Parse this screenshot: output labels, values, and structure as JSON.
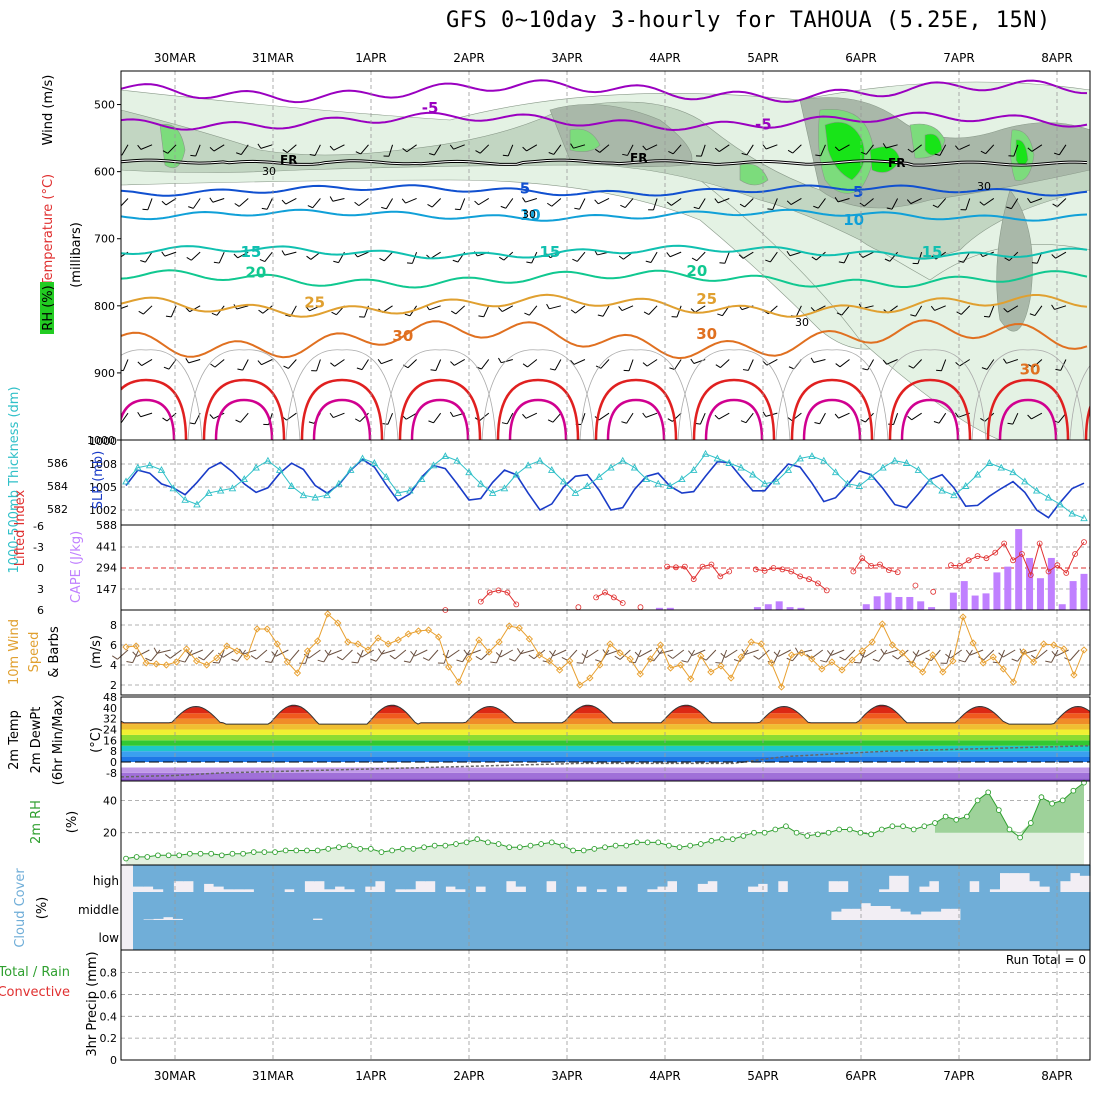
{
  "title": "GFS 0~10day 3-hourly for TAHOUA (5.25E, 15N)",
  "colors": {
    "rh_light": "#e4f2e4",
    "rh_mid": "#c2d6c2",
    "rh_gray": "#a9b8a9",
    "rh_green": "#7cdc7c",
    "rh_bright": "#18e418",
    "temp_purple": "#9a00c0",
    "temp_blue": "#1050d0",
    "temp_cyan": "#10a0d8",
    "temp_teal": "#10c0b0",
    "temp_green": "#10c890",
    "temp_orange": "#e0a030",
    "temp_dorange": "#e07020",
    "temp_red": "#e02020",
    "temp_magenta": "#d00090",
    "slp": "#1a3cc8",
    "thickness": "#30c0c8",
    "lifted": "#e03030",
    "cape": "#c080ff",
    "wind10": "#e8a030",
    "rh2m": "#30a030",
    "cloud": "#70aed8",
    "cloud_clear": "#f2eef4"
  },
  "chart_data": [
    {
      "type": "heatmap",
      "name_panel": "vertical-profile",
      "ylabel_rh": "RH (%)",
      "ylabel_temp": "Temperature (°C)",
      "ylabel_wind": "Wind (m/s)",
      "ylabel_units": "(millibars)",
      "x_dates_top": [
        "30MAR",
        "31MAR",
        "1APR",
        "2APR",
        "3APR",
        "4APR",
        "5APR",
        "6APR",
        "7APR",
        "8APR"
      ],
      "yticks": [
        500,
        600,
        700,
        800,
        900,
        1000
      ],
      "ylim": [
        450,
        1000
      ],
      "freezing_label": "FR",
      "freezing_level_mb": [
        585,
        587,
        586,
        587,
        585,
        586,
        587,
        586,
        588,
        588
      ],
      "isotherm_labels": [
        {
          "t": "-5",
          "p": 505,
          "day": 2.6
        },
        {
          "t": "-5",
          "p": 530,
          "day": 6.0
        },
        {
          "t": "5",
          "p": 625,
          "day": 3.6
        },
        {
          "t": "5",
          "p": 630,
          "day": 7.0
        },
        {
          "t": "10",
          "p": 665,
          "day": 3.6
        },
        {
          "t": "10",
          "p": 672,
          "day": 6.9
        },
        {
          "t": "15",
          "p": 720,
          "day": 0.75
        },
        {
          "t": "15",
          "p": 720,
          "day": 3.8
        },
        {
          "t": "15",
          "p": 720,
          "day": 7.7
        },
        {
          "t": "20",
          "p": 750,
          "day": 0.8
        },
        {
          "t": "20",
          "p": 748,
          "day": 5.3
        },
        {
          "t": "25",
          "p": 795,
          "day": 1.4
        },
        {
          "t": "25",
          "p": 790,
          "day": 5.4
        },
        {
          "t": "30",
          "p": 845,
          "day": 2.3
        },
        {
          "t": "30",
          "p": 842,
          "day": 5.4
        },
        {
          "t": "30",
          "p": 895,
          "day": 8.7
        }
      ],
      "small_labels": [
        "30",
        "30",
        "30",
        "30"
      ]
    },
    {
      "type": "line",
      "name_panel": "slp-thickness",
      "ylabel_left": "1000-500mb Thickness (dm)",
      "ylabel_right": "SLP (mb)",
      "yticks_left": [
        582,
        584,
        586
      ],
      "yticks_right": [
        1002,
        1005,
        1008
      ],
      "series": [
        {
          "name": "SLP",
          "values": [
            1005.2,
            1007.2,
            1006.8,
            1005.4,
            1004.9,
            1004.0,
            1005.6,
            1007.4,
            1008.2,
            1007.0,
            1005.4,
            1004.3,
            1004.9,
            1006.8,
            1008.1,
            1007.3,
            1005.2,
            1004.2,
            1005.3,
            1007.2,
            1008.6,
            1007.6,
            1005.3,
            1003.2,
            1004.1,
            1006.3,
            1007.8,
            1007.4,
            1005.4,
            1003.3,
            1003.5,
            1005.6,
            1007.2,
            1006.6,
            1004.2,
            1002.0,
            1002.8,
            1005.0,
            1006.4,
            1006.6,
            1004.6,
            1002.0,
            1002.3,
            1004.7,
            1006.4,
            1006.8,
            1005.1,
            1004.2,
            1004.4,
            1006.4,
            1008.3,
            1008.2,
            1006.3,
            1004.5,
            1004.5,
            1006.3,
            1008.0,
            1007.6,
            1005.5,
            1003.1,
            1003.6,
            1005.3,
            1007.1,
            1006.6,
            1004.8,
            1002.7,
            1002.3,
            1004.1,
            1006.0,
            1006.6,
            1004.9,
            1002.5,
            1002.6,
            1003.8,
            1004.8,
            1005.7,
            1004.3,
            1002.0,
            1001.0,
            1003.0,
            1004.8,
            1005.5
          ]
        },
        {
          "name": "Thickness",
          "values": [
            584.4,
            585.6,
            585.8,
            585.4,
            583.8,
            582.8,
            582.4,
            583.4,
            583.6,
            583.8,
            584.6,
            585.6,
            586.2,
            585.4,
            584.0,
            583.2,
            583.0,
            583.2,
            584.2,
            585.4,
            586.4,
            586.0,
            584.8,
            583.4,
            583.6,
            584.6,
            585.8,
            586.6,
            586.2,
            585.2,
            584.2,
            583.4,
            583.8,
            585.0,
            585.8,
            586.2,
            585.4,
            584.4,
            583.4,
            584.0,
            584.8,
            585.6,
            586.2,
            585.6,
            584.6,
            584.2,
            584.0,
            584.6,
            585.4,
            586.8,
            586.4,
            586.0,
            585.6,
            585.0,
            584.2,
            584.4,
            585.4,
            586.4,
            586.6,
            586.2,
            585.2,
            584.2,
            584.0,
            584.8,
            585.6,
            586.2,
            586.0,
            585.4,
            584.4,
            583.6,
            583.2,
            584.0,
            585.0,
            586.0,
            585.6,
            585.2,
            584.4,
            583.6,
            583.0,
            582.4,
            581.6,
            581.2
          ]
        }
      ]
    },
    {
      "type": "bar",
      "name_panel": "cape-li",
      "ylabel_left": "Lifted Index",
      "ylabel_right": "CAPE (J/kg)",
      "yticks_left": [
        -6,
        -3,
        0,
        3,
        6
      ],
      "yticks_right": [
        147,
        294,
        441,
        588
      ],
      "cape_values": [
        0,
        0,
        0,
        0,
        0,
        0,
        0,
        0,
        0,
        0,
        0,
        0,
        0,
        0,
        0,
        0,
        0,
        0,
        0,
        0,
        0,
        0,
        0,
        0,
        0,
        0,
        0,
        0,
        0,
        0,
        0,
        0,
        0,
        0,
        0,
        0,
        0,
        0,
        0,
        0,
        0,
        0,
        0,
        0,
        0,
        0,
        0,
        0,
        0,
        15,
        15,
        0,
        0,
        0,
        0,
        0,
        0,
        0,
        20,
        40,
        60,
        20,
        15,
        0,
        0,
        0,
        0,
        0,
        40,
        95,
        120,
        90,
        90,
        60,
        20,
        0,
        120,
        200,
        100,
        115,
        260,
        300,
        560,
        360,
        220,
        360,
        40,
        200,
        250
      ],
      "li_values": [
        null,
        null,
        null,
        null,
        null,
        null,
        null,
        null,
        null,
        null,
        null,
        null,
        null,
        null,
        null,
        null,
        null,
        null,
        null,
        null,
        null,
        null,
        null,
        null,
        null,
        null,
        null,
        null,
        null,
        null,
        null,
        null,
        null,
        null,
        null,
        null,
        6,
        null,
        null,
        null,
        4.8,
        3.5,
        3.2,
        3.5,
        5.2,
        null,
        null,
        null,
        null,
        null,
        null,
        5.6,
        null,
        4.2,
        3.5,
        4.2,
        5.0,
        null,
        5.6,
        null,
        null,
        -0.2,
        -0.1,
        -0.2,
        1.6,
        -0.2,
        -0.5,
        1.2,
        0.5,
        null,
        null,
        0.2,
        0.4,
        0.0,
        0.2,
        0.5,
        1.2,
        1.6,
        2.2,
        3.2,
        null,
        null,
        0.5,
        -1.4,
        -0.3,
        -0.5,
        0.3,
        0.6,
        null,
        2.5,
        null,
        3.4,
        null,
        -0.4,
        -0.3,
        -1.1,
        -1.7,
        -1.4,
        -2.2,
        -3.5,
        -1.1,
        -2.0,
        1.0,
        -3.5,
        0.5,
        -0.4,
        0.7,
        -2.0,
        -3.7
      ]
    },
    {
      "type": "line",
      "name_panel": "wind10m",
      "ylabel": "10m Wind Speed & Barbs (m/s)",
      "yticks": [
        2,
        4,
        6,
        8
      ],
      "ylim": [
        1,
        9.5
      ],
      "series": [
        {
          "name": "Speed",
          "values": [
            5.8,
            5.9,
            4.2,
            4.1,
            4.0,
            4.3,
            5.6,
            4.4,
            4.0,
            4.7,
            5.9,
            5.4,
            4.8,
            7.6,
            7.6,
            6.1,
            4.3,
            3.2,
            5.4,
            6.4,
            9.1,
            8.2,
            6.3,
            6.1,
            5.5,
            6.7,
            6.1,
            6.5,
            7.1,
            7.4,
            7.5,
            6.8,
            3.8,
            2.3,
            4.6,
            6.5,
            5.3,
            6.3,
            7.9,
            7.7,
            6.6,
            5.0,
            4.4,
            3.5,
            4.4,
            2.0,
            2.7,
            4.0,
            6.1,
            5.2,
            4.6,
            3.1,
            4.6,
            6.0,
            3.7,
            4.0,
            2.6,
            4.9,
            3.3,
            3.9,
            2.7,
            4.8,
            6.3,
            6.1,
            4.2,
            1.8,
            5.0,
            5.2,
            4.6,
            3.6,
            4.3,
            3.5,
            4.5,
            5.4,
            6.3,
            8.1,
            6.0,
            5.2,
            4.1,
            3.3,
            5.0,
            3.3,
            4.4,
            8.8,
            6.2,
            4.2,
            4.8,
            3.6,
            2.3,
            5.3,
            4.3,
            6.1,
            6.0,
            5.6,
            3.0,
            5.5
          ]
        }
      ]
    },
    {
      "type": "area",
      "name_panel": "temp2m",
      "ylabel": "2m Temp 2m DewPt (6hr Min/Max) (°C)",
      "yticks": [
        -8,
        0,
        8,
        16,
        24,
        32,
        40,
        48
      ],
      "ylim": [
        -14,
        48
      ],
      "band_colors": [
        "#8850c8",
        "#a070d8",
        "#c09ae8",
        "#ffffff",
        "#1e78e6",
        "#3aa0f0",
        "#1ec8c8",
        "#32c832",
        "#8cdc32",
        "#f0f032",
        "#f0be32",
        "#f08c28",
        "#f05a1e",
        "#dc2814",
        "#b41414",
        "#8c0a0a"
      ],
      "temp_max": [
        41,
        42,
        42,
        41,
        42,
        42,
        41,
        42,
        41,
        41
      ],
      "temp_min": [
        29,
        28,
        28,
        29,
        29,
        29,
        29,
        29,
        29,
        28
      ],
      "dewpt": [
        -11,
        -10,
        -8,
        -7,
        -6,
        -5,
        -4,
        -3,
        -2,
        -1,
        -1,
        -1,
        -1,
        4,
        6,
        8,
        9,
        10,
        11,
        12
      ]
    },
    {
      "type": "area",
      "name_panel": "rh2m",
      "ylabel": "2m RH (%)",
      "yticks": [
        20,
        40
      ],
      "ylim": [
        0,
        52
      ],
      "series": [
        {
          "name": "RH",
          "values": [
            4,
            5,
            5,
            6,
            6,
            6,
            7,
            7,
            7,
            6,
            7,
            7,
            8,
            8,
            8,
            9,
            9,
            9,
            9,
            10,
            11,
            12,
            10,
            10,
            8,
            9,
            10,
            10,
            11,
            12,
            12,
            13,
            14,
            16,
            14,
            13,
            11,
            11,
            12,
            13,
            14,
            12,
            9,
            9,
            10,
            11,
            12,
            12,
            14,
            14,
            14,
            12,
            11,
            12,
            13,
            15,
            16,
            16,
            18,
            20,
            20,
            22,
            24,
            20,
            18,
            19,
            20,
            22,
            22,
            20,
            19,
            22,
            24,
            24,
            22,
            24,
            26,
            30,
            28,
            30,
            40,
            45,
            34,
            22,
            17,
            26,
            42,
            38,
            40,
            46,
            51
          ]
        }
      ]
    },
    {
      "type": "heatmap",
      "name_panel": "cloud-cover",
      "ylabel": "Cloud Cover (%)",
      "levels": [
        "high",
        "middle",
        "low"
      ],
      "high_percent": [
        80,
        80,
        90,
        100,
        60,
        60,
        100,
        70,
        80,
        90,
        90,
        90,
        100,
        100,
        100,
        90,
        100,
        60,
        60,
        90,
        80,
        90,
        100,
        80,
        60,
        100,
        90,
        90,
        60,
        60,
        100,
        80,
        90,
        100,
        80,
        100,
        100,
        60,
        80,
        100,
        100,
        60,
        100,
        100,
        80,
        100,
        90,
        100,
        80,
        100,
        100,
        90,
        80,
        60,
        100,
        100,
        70,
        60,
        100,
        100,
        100,
        80,
        70,
        100,
        60,
        100,
        100,
        100,
        100,
        60,
        60,
        100,
        100,
        100,
        90,
        40,
        40,
        100,
        80,
        60,
        100,
        100,
        100,
        60,
        100,
        90,
        30,
        30,
        30,
        60,
        80,
        100,
        60,
        30,
        40
      ],
      "middle_percent": [
        100,
        98,
        96,
        90,
        96,
        100,
        100,
        100,
        100,
        100,
        100,
        100,
        100,
        100,
        100,
        100,
        100,
        100,
        95,
        100,
        100,
        100,
        100,
        100,
        100,
        100,
        100,
        100,
        100,
        100,
        100,
        100,
        100,
        100,
        100,
        100,
        100,
        100,
        100,
        100,
        100,
        100,
        100,
        100,
        100,
        100,
        100,
        100,
        100,
        100,
        100,
        100,
        100,
        100,
        100,
        100,
        100,
        100,
        100,
        100,
        100,
        100,
        100,
        100,
        100,
        100,
        100,
        100,
        100,
        100,
        70,
        60,
        60,
        40,
        50,
        50,
        60,
        70,
        80,
        70,
        70,
        60,
        60,
        100,
        100,
        100,
        100,
        100,
        100,
        100,
        100,
        100,
        100,
        100,
        100,
        100
      ],
      "low_percent": [
        100,
        100,
        100,
        100,
        100,
        100,
        100,
        100,
        100,
        100,
        100,
        100,
        100,
        100,
        100,
        100,
        100,
        100,
        100,
        100,
        100,
        100,
        100,
        100,
        100,
        100,
        100,
        100,
        100,
        100,
        100,
        100,
        100,
        100,
        100,
        100,
        100,
        100,
        100,
        100,
        100,
        100,
        100,
        100,
        100,
        100,
        100,
        100,
        100,
        100,
        100,
        100,
        100,
        100,
        100,
        100,
        100,
        100,
        100,
        100,
        100,
        100,
        100,
        100,
        100,
        100,
        100,
        100,
        100,
        100,
        100,
        100,
        100,
        100,
        100,
        100,
        100,
        100,
        100,
        100,
        100,
        100,
        100,
        100,
        100,
        100,
        100,
        100,
        100,
        100,
        100,
        100,
        100,
        100,
        100,
        100
      ]
    },
    {
      "type": "bar",
      "name_panel": "precip",
      "ylabel_total": "Total / Rain",
      "ylabel_conv": "Convective",
      "ylabel_units": "3hr Precip (mm)",
      "yticks": [
        0,
        0.2,
        0.4,
        0.6,
        0.8
      ],
      "ylim": [
        0,
        1
      ],
      "run_total_label": "Run Total = 0",
      "values": []
    }
  ],
  "x_dates_bottom": [
    "30MAR",
    "31MAR",
    "1APR",
    "2APR",
    "3APR",
    "4APR",
    "5APR",
    "6APR",
    "7APR",
    "8APR"
  ]
}
